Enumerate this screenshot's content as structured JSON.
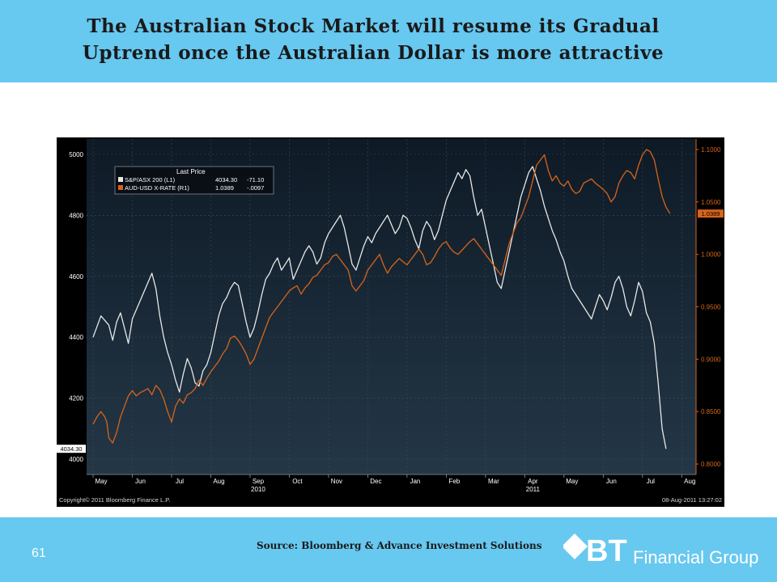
{
  "slide": {
    "title_line1": "The Australian Stock Market will resume its Gradual",
    "title_line2": "Uptrend once the Australian Dollar is more attractive",
    "source": "Source: Bloomberg & Advance Investment Solutions",
    "page_number": "61",
    "logo_text": "BT",
    "logo_subtext": "Financial Group"
  },
  "colors": {
    "band": "#67c8f0",
    "series_left": "#e8e8e8",
    "series_right": "#d8641a",
    "chart_bg": "#000000"
  },
  "chart_data": {
    "type": "line",
    "legend": {
      "header": "Last Price",
      "entries": [
        {
          "label": "S&P/ASX 200  (L1)",
          "last": "4034.30",
          "change": "-71.10"
        },
        {
          "label": "AUD-USD X-RATE  (R1)",
          "last": "1.0389",
          "change": "-.0097"
        }
      ],
      "placement": "top-left"
    },
    "x_labels": [
      "May",
      "Jun",
      "Jul",
      "Aug",
      "Sep",
      "Oct",
      "Nov",
      "Dec",
      "Jan",
      "Feb",
      "Mar",
      "Apr",
      "May",
      "Jun",
      "Jul",
      "Aug"
    ],
    "year_labels": [
      {
        "at": 4,
        "text": "2010"
      },
      {
        "at": 11,
        "text": "2011"
      }
    ],
    "x_range": [
      0,
      15.2
    ],
    "y_left": {
      "min": 3950,
      "max": 5050,
      "ticks": [
        "4000",
        "4200",
        "4400",
        "4600",
        "4800",
        "5000"
      ],
      "last_label": "4034.30"
    },
    "y_right": {
      "min": 0.79,
      "max": 1.11,
      "ticks": [
        "0.8000",
        "0.8500",
        "0.9000",
        "0.9500",
        "1.0000",
        "1.0500",
        "1.1000"
      ],
      "last_label": "1.0389"
    },
    "series": [
      {
        "name": "S&P/ASX 200",
        "axis": "left",
        "points": [
          [
            0.0,
            4400
          ],
          [
            0.2,
            4470
          ],
          [
            0.4,
            4440
          ],
          [
            0.5,
            4390
          ],
          [
            0.6,
            4450
          ],
          [
            0.7,
            4480
          ],
          [
            0.8,
            4430
          ],
          [
            0.9,
            4380
          ],
          [
            1.0,
            4460
          ],
          [
            1.2,
            4520
          ],
          [
            1.4,
            4580
          ],
          [
            1.5,
            4610
          ],
          [
            1.6,
            4560
          ],
          [
            1.7,
            4470
          ],
          [
            1.8,
            4400
          ],
          [
            1.9,
            4350
          ],
          [
            2.0,
            4310
          ],
          [
            2.1,
            4260
          ],
          [
            2.2,
            4220
          ],
          [
            2.3,
            4280
          ],
          [
            2.4,
            4330
          ],
          [
            2.5,
            4300
          ],
          [
            2.6,
            4250
          ],
          [
            2.7,
            4240
          ],
          [
            2.8,
            4290
          ],
          [
            2.9,
            4310
          ],
          [
            3.0,
            4350
          ],
          [
            3.1,
            4410
          ],
          [
            3.2,
            4470
          ],
          [
            3.3,
            4510
          ],
          [
            3.4,
            4530
          ],
          [
            3.5,
            4560
          ],
          [
            3.6,
            4580
          ],
          [
            3.7,
            4570
          ],
          [
            3.8,
            4510
          ],
          [
            3.9,
            4450
          ],
          [
            4.0,
            4400
          ],
          [
            4.1,
            4430
          ],
          [
            4.2,
            4480
          ],
          [
            4.3,
            4540
          ],
          [
            4.4,
            4590
          ],
          [
            4.5,
            4610
          ],
          [
            4.6,
            4640
          ],
          [
            4.7,
            4660
          ],
          [
            4.8,
            4620
          ],
          [
            4.9,
            4640
          ],
          [
            5.0,
            4660
          ],
          [
            5.1,
            4590
          ],
          [
            5.2,
            4620
          ],
          [
            5.3,
            4650
          ],
          [
            5.4,
            4680
          ],
          [
            5.5,
            4700
          ],
          [
            5.6,
            4680
          ],
          [
            5.7,
            4640
          ],
          [
            5.8,
            4660
          ],
          [
            5.9,
            4710
          ],
          [
            6.0,
            4740
          ],
          [
            6.1,
            4760
          ],
          [
            6.2,
            4780
          ],
          [
            6.3,
            4800
          ],
          [
            6.4,
            4760
          ],
          [
            6.5,
            4700
          ],
          [
            6.6,
            4640
          ],
          [
            6.7,
            4620
          ],
          [
            6.8,
            4660
          ],
          [
            6.9,
            4700
          ],
          [
            7.0,
            4730
          ],
          [
            7.1,
            4710
          ],
          [
            7.2,
            4740
          ],
          [
            7.3,
            4760
          ],
          [
            7.4,
            4780
          ],
          [
            7.5,
            4800
          ],
          [
            7.6,
            4770
          ],
          [
            7.7,
            4740
          ],
          [
            7.8,
            4760
          ],
          [
            7.9,
            4800
          ],
          [
            8.0,
            4790
          ],
          [
            8.1,
            4760
          ],
          [
            8.2,
            4720
          ],
          [
            8.3,
            4690
          ],
          [
            8.4,
            4750
          ],
          [
            8.5,
            4780
          ],
          [
            8.6,
            4760
          ],
          [
            8.7,
            4720
          ],
          [
            8.8,
            4750
          ],
          [
            8.9,
            4800
          ],
          [
            9.0,
            4850
          ],
          [
            9.1,
            4880
          ],
          [
            9.2,
            4910
          ],
          [
            9.3,
            4940
          ],
          [
            9.4,
            4920
          ],
          [
            9.5,
            4950
          ],
          [
            9.6,
            4930
          ],
          [
            9.7,
            4860
          ],
          [
            9.8,
            4800
          ],
          [
            9.9,
            4820
          ],
          [
            10.0,
            4760
          ],
          [
            10.1,
            4700
          ],
          [
            10.2,
            4640
          ],
          [
            10.3,
            4580
          ],
          [
            10.4,
            4560
          ],
          [
            10.5,
            4620
          ],
          [
            10.6,
            4680
          ],
          [
            10.7,
            4740
          ],
          [
            10.8,
            4800
          ],
          [
            10.9,
            4860
          ],
          [
            11.0,
            4900
          ],
          [
            11.1,
            4940
          ],
          [
            11.2,
            4960
          ],
          [
            11.3,
            4920
          ],
          [
            11.4,
            4880
          ],
          [
            11.5,
            4830
          ],
          [
            11.6,
            4790
          ],
          [
            11.7,
            4750
          ],
          [
            11.8,
            4720
          ],
          [
            11.9,
            4680
          ],
          [
            12.0,
            4650
          ],
          [
            12.1,
            4600
          ],
          [
            12.2,
            4560
          ],
          [
            12.3,
            4540
          ],
          [
            12.4,
            4520
          ],
          [
            12.5,
            4500
          ],
          [
            12.6,
            4480
          ],
          [
            12.7,
            4460
          ],
          [
            12.8,
            4500
          ],
          [
            12.9,
            4540
          ],
          [
            13.0,
            4520
          ],
          [
            13.1,
            4490
          ],
          [
            13.2,
            4530
          ],
          [
            13.3,
            4580
          ],
          [
            13.4,
            4600
          ],
          [
            13.5,
            4560
          ],
          [
            13.6,
            4500
          ],
          [
            13.7,
            4470
          ],
          [
            13.8,
            4520
          ],
          [
            13.9,
            4580
          ],
          [
            14.0,
            4550
          ],
          [
            14.1,
            4480
          ],
          [
            14.2,
            4450
          ],
          [
            14.3,
            4380
          ],
          [
            14.4,
            4250
          ],
          [
            14.5,
            4100
          ],
          [
            14.6,
            4034.3
          ]
        ]
      },
      {
        "name": "AUD-USD X-RATE",
        "axis": "right",
        "points": [
          [
            0.0,
            0.838
          ],
          [
            0.1,
            0.845
          ],
          [
            0.2,
            0.85
          ],
          [
            0.3,
            0.845
          ],
          [
            0.35,
            0.84
          ],
          [
            0.4,
            0.825
          ],
          [
            0.5,
            0.82
          ],
          [
            0.6,
            0.83
          ],
          [
            0.7,
            0.845
          ],
          [
            0.8,
            0.855
          ],
          [
            0.9,
            0.865
          ],
          [
            1.0,
            0.87
          ],
          [
            1.1,
            0.865
          ],
          [
            1.2,
            0.868
          ],
          [
            1.3,
            0.87
          ],
          [
            1.4,
            0.872
          ],
          [
            1.5,
            0.866
          ],
          [
            1.6,
            0.875
          ],
          [
            1.7,
            0.871
          ],
          [
            1.8,
            0.862
          ],
          [
            1.9,
            0.85
          ],
          [
            2.0,
            0.84
          ],
          [
            2.1,
            0.855
          ],
          [
            2.2,
            0.862
          ],
          [
            2.3,
            0.858
          ],
          [
            2.4,
            0.866
          ],
          [
            2.5,
            0.868
          ],
          [
            2.6,
            0.872
          ],
          [
            2.7,
            0.88
          ],
          [
            2.8,
            0.875
          ],
          [
            2.9,
            0.882
          ],
          [
            3.0,
            0.888
          ],
          [
            3.1,
            0.893
          ],
          [
            3.2,
            0.898
          ],
          [
            3.3,
            0.905
          ],
          [
            3.4,
            0.91
          ],
          [
            3.5,
            0.92
          ],
          [
            3.6,
            0.922
          ],
          [
            3.7,
            0.918
          ],
          [
            3.8,
            0.912
          ],
          [
            3.9,
            0.905
          ],
          [
            4.0,
            0.895
          ],
          [
            4.1,
            0.9
          ],
          [
            4.2,
            0.91
          ],
          [
            4.3,
            0.92
          ],
          [
            4.4,
            0.93
          ],
          [
            4.5,
            0.94
          ],
          [
            4.6,
            0.945
          ],
          [
            4.7,
            0.95
          ],
          [
            4.8,
            0.955
          ],
          [
            4.9,
            0.96
          ],
          [
            5.0,
            0.965
          ],
          [
            5.1,
            0.968
          ],
          [
            5.2,
            0.97
          ],
          [
            5.3,
            0.962
          ],
          [
            5.4,
            0.968
          ],
          [
            5.5,
            0.972
          ],
          [
            5.6,
            0.978
          ],
          [
            5.7,
            0.98
          ],
          [
            5.8,
            0.985
          ],
          [
            5.9,
            0.99
          ],
          [
            6.0,
            0.992
          ],
          [
            6.1,
            0.998
          ],
          [
            6.2,
            1.0
          ],
          [
            6.3,
            0.995
          ],
          [
            6.4,
            0.99
          ],
          [
            6.5,
            0.985
          ],
          [
            6.6,
            0.97
          ],
          [
            6.7,
            0.965
          ],
          [
            6.8,
            0.97
          ],
          [
            6.9,
            0.975
          ],
          [
            7.0,
            0.985
          ],
          [
            7.1,
            0.99
          ],
          [
            7.2,
            0.995
          ],
          [
            7.3,
            1.0
          ],
          [
            7.4,
            0.99
          ],
          [
            7.5,
            0.982
          ],
          [
            7.6,
            0.988
          ],
          [
            7.7,
            0.992
          ],
          [
            7.8,
            0.996
          ],
          [
            7.9,
            0.993
          ],
          [
            8.0,
            0.99
          ],
          [
            8.1,
            0.995
          ],
          [
            8.2,
            1.0
          ],
          [
            8.3,
            1.005
          ],
          [
            8.4,
            1.0
          ],
          [
            8.5,
            0.99
          ],
          [
            8.6,
            0.992
          ],
          [
            8.7,
            0.998
          ],
          [
            8.8,
            1.005
          ],
          [
            8.9,
            1.01
          ],
          [
            9.0,
            1.012
          ],
          [
            9.1,
            1.006
          ],
          [
            9.2,
            1.002
          ],
          [
            9.3,
            1.0
          ],
          [
            9.4,
            1.004
          ],
          [
            9.5,
            1.008
          ],
          [
            9.6,
            1.012
          ],
          [
            9.7,
            1.015
          ],
          [
            9.8,
            1.01
          ],
          [
            9.9,
            1.005
          ],
          [
            10.0,
            1.0
          ],
          [
            10.1,
            0.995
          ],
          [
            10.2,
            0.99
          ],
          [
            10.3,
            0.985
          ],
          [
            10.4,
            0.98
          ],
          [
            10.5,
            0.995
          ],
          [
            10.6,
            1.01
          ],
          [
            10.7,
            1.02
          ],
          [
            10.8,
            1.03
          ],
          [
            10.9,
            1.035
          ],
          [
            11.0,
            1.045
          ],
          [
            11.1,
            1.055
          ],
          [
            11.2,
            1.07
          ],
          [
            11.3,
            1.085
          ],
          [
            11.4,
            1.09
          ],
          [
            11.5,
            1.095
          ],
          [
            11.6,
            1.08
          ],
          [
            11.7,
            1.07
          ],
          [
            11.8,
            1.075
          ],
          [
            11.9,
            1.068
          ],
          [
            12.0,
            1.065
          ],
          [
            12.1,
            1.07
          ],
          [
            12.2,
            1.062
          ],
          [
            12.3,
            1.058
          ],
          [
            12.4,
            1.06
          ],
          [
            12.5,
            1.068
          ],
          [
            12.6,
            1.07
          ],
          [
            12.7,
            1.072
          ],
          [
            12.8,
            1.068
          ],
          [
            12.9,
            1.065
          ],
          [
            13.0,
            1.062
          ],
          [
            13.1,
            1.058
          ],
          [
            13.2,
            1.05
          ],
          [
            13.3,
            1.055
          ],
          [
            13.4,
            1.068
          ],
          [
            13.5,
            1.075
          ],
          [
            13.6,
            1.08
          ],
          [
            13.7,
            1.078
          ],
          [
            13.8,
            1.072
          ],
          [
            13.9,
            1.085
          ],
          [
            14.0,
            1.095
          ],
          [
            14.1,
            1.1
          ],
          [
            14.2,
            1.098
          ],
          [
            14.3,
            1.09
          ],
          [
            14.4,
            1.072
          ],
          [
            14.5,
            1.055
          ],
          [
            14.6,
            1.045
          ],
          [
            14.7,
            1.0389
          ]
        ]
      }
    ],
    "copyright": "Copyright© 2011 Bloomberg Finance L.P.",
    "timestamp": "08-Aug-2011 13:27:02"
  }
}
